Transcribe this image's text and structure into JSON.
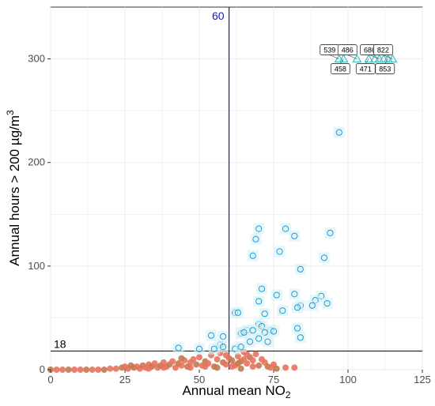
{
  "chart_data": {
    "type": "scatter",
    "xlabel": "Annual mean NO",
    "xlabel_sub": "2",
    "ylabel": "Annual hours > 200 µg/m",
    "ylabel_sup": "3",
    "xlim": [
      0,
      125
    ],
    "ylim": [
      0,
      350
    ],
    "xticks": [
      0,
      25,
      50,
      75,
      100,
      125
    ],
    "yticks": [
      0,
      100,
      200,
      300
    ],
    "grid": true,
    "colors": {
      "exceed_circle": "#1f9ad6",
      "exceed_fill": "#d5f2f5",
      "below_point": "#e8725e",
      "below_point_dark": "#c07a50",
      "capped_triangle": "#3fbfbf",
      "ref_vline": "#1a1aa6",
      "ref_hline": "#000000",
      "grid": "#ebebeb"
    },
    "reference_lines": {
      "vertical": {
        "x": 60,
        "label": "60"
      },
      "horizontal": {
        "y": 18,
        "label": "18"
      }
    },
    "capped_points": {
      "y": 300,
      "x": [
        97,
        98.5,
        103,
        107,
        109,
        110.5,
        112,
        113.5,
        115
      ],
      "labels": [
        {
          "text": "539",
          "x": 97
        },
        {
          "text": "486",
          "x": 103
        },
        {
          "text": "686",
          "x": 110.5
        },
        {
          "text": "822",
          "x": 115
        },
        {
          "text": "458",
          "x": 98.5
        },
        {
          "text": "471",
          "x": 107
        },
        {
          "text": "853",
          "x": 113.5
        }
      ]
    },
    "series_exceed": [
      [
        97,
        229
      ],
      [
        79,
        136
      ],
      [
        70,
        136
      ],
      [
        94,
        132
      ],
      [
        82,
        129
      ],
      [
        69,
        126
      ],
      [
        77,
        114
      ],
      [
        68,
        110
      ],
      [
        92,
        108
      ],
      [
        84,
        97
      ],
      [
        71,
        78
      ],
      [
        82,
        73
      ],
      [
        76,
        72
      ],
      [
        91,
        71
      ],
      [
        70,
        66
      ],
      [
        89,
        67
      ],
      [
        93,
        64
      ],
      [
        84,
        62
      ],
      [
        88,
        62
      ],
      [
        83,
        60
      ],
      [
        78,
        57
      ],
      [
        72,
        54
      ],
      [
        62,
        55
      ],
      [
        63,
        55
      ],
      [
        83,
        40
      ],
      [
        70,
        44
      ],
      [
        71,
        42
      ],
      [
        74,
        38
      ],
      [
        66,
        38
      ],
      [
        75,
        37
      ],
      [
        68,
        38
      ],
      [
        72,
        36
      ],
      [
        64,
        35
      ],
      [
        65,
        36
      ],
      [
        54,
        33
      ],
      [
        58,
        32
      ],
      [
        84,
        31
      ],
      [
        70,
        30
      ],
      [
        73,
        27
      ],
      [
        67,
        27
      ],
      [
        57,
        24
      ],
      [
        58,
        22
      ],
      [
        43,
        21
      ],
      [
        50,
        20
      ],
      [
        55,
        20
      ],
      [
        62,
        20
      ],
      [
        64,
        22
      ]
    ],
    "series_below": [
      [
        0,
        0
      ],
      [
        2,
        0
      ],
      [
        4,
        0
      ],
      [
        6,
        0
      ],
      [
        8,
        0
      ],
      [
        10,
        0
      ],
      [
        12,
        0
      ],
      [
        14,
        0
      ],
      [
        16,
        0
      ],
      [
        18,
        0
      ],
      [
        20,
        1
      ],
      [
        22,
        1
      ],
      [
        24,
        2
      ],
      [
        25,
        3
      ],
      [
        26,
        1
      ],
      [
        28,
        2
      ],
      [
        29,
        3
      ],
      [
        30,
        1
      ],
      [
        31,
        4
      ],
      [
        32,
        2
      ],
      [
        33,
        5
      ],
      [
        34,
        3
      ],
      [
        35,
        6
      ],
      [
        36,
        2
      ],
      [
        37,
        4
      ],
      [
        38,
        7
      ],
      [
        39,
        3
      ],
      [
        40,
        5
      ],
      [
        41,
        8
      ],
      [
        42,
        2
      ],
      [
        43,
        6
      ],
      [
        44,
        4
      ],
      [
        45,
        9
      ],
      [
        46,
        3
      ],
      [
        47,
        7
      ],
      [
        48,
        10
      ],
      [
        49,
        5
      ],
      [
        50,
        12
      ],
      [
        51,
        4
      ],
      [
        52,
        8
      ],
      [
        53,
        6
      ],
      [
        54,
        14
      ],
      [
        55,
        3
      ],
      [
        56,
        10
      ],
      [
        57,
        16
      ],
      [
        58,
        7
      ],
      [
        59,
        5
      ],
      [
        60,
        11
      ],
      [
        61,
        9
      ],
      [
        62,
        4
      ],
      [
        63,
        13
      ],
      [
        64,
        8
      ],
      [
        65,
        17
      ],
      [
        66,
        6
      ],
      [
        67,
        12
      ],
      [
        68,
        9
      ],
      [
        69,
        15
      ],
      [
        70,
        4
      ],
      [
        71,
        10
      ],
      [
        72,
        7
      ],
      [
        73,
        3
      ],
      [
        74,
        2
      ],
      [
        75,
        5
      ],
      [
        76,
        1
      ],
      [
        79,
        2
      ],
      [
        82,
        2
      ],
      [
        27,
        4
      ],
      [
        33,
        1
      ],
      [
        38,
        2
      ],
      [
        44,
        11
      ],
      [
        47,
        2
      ],
      [
        52,
        3
      ],
      [
        56,
        2
      ],
      [
        59,
        14
      ],
      [
        61,
        3
      ],
      [
        64,
        1
      ],
      [
        66,
        15
      ],
      [
        68,
        3
      ],
      [
        63,
        6
      ],
      [
        65,
        10
      ]
    ]
  }
}
